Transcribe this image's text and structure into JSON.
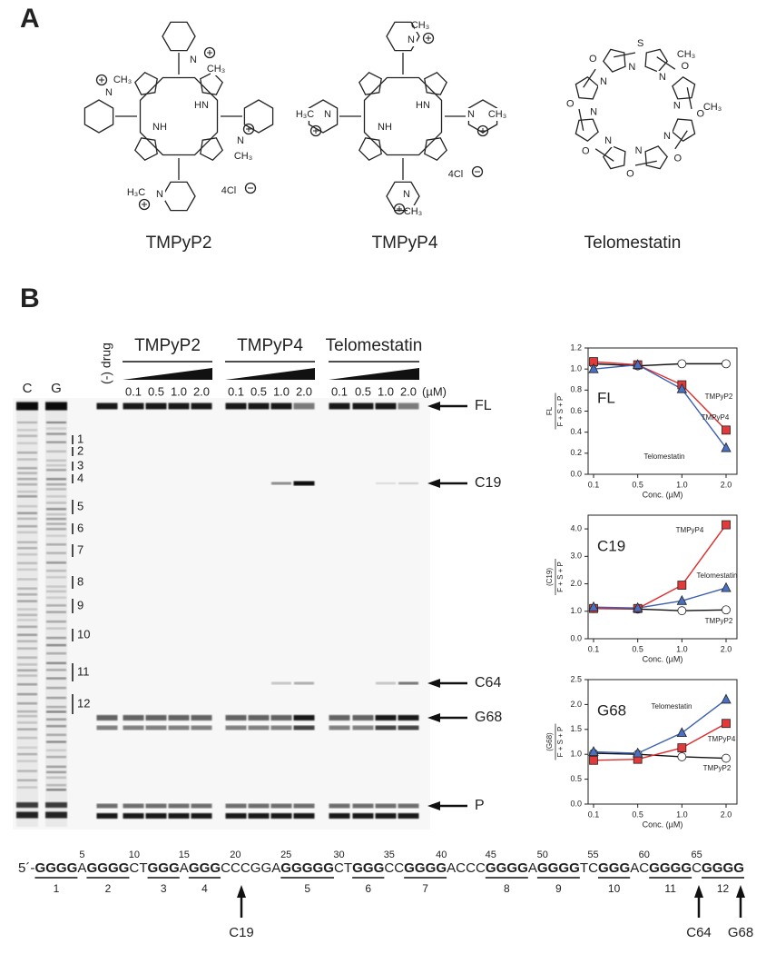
{
  "panel_a": {
    "label": "A",
    "structures": [
      {
        "name": "TMPyP2",
        "atoms": [
          "N",
          "CH₃",
          "N",
          "CH₃",
          "N",
          "CH₃",
          "H₃C",
          "N",
          "NH",
          "HN",
          "4Cl"
        ]
      },
      {
        "name": "TMPyP4",
        "atoms": [
          "CH₃",
          "N",
          "H₃C",
          "N",
          "N",
          "CH₃",
          "NH",
          "HN",
          "N",
          "CH₃",
          "4Cl"
        ]
      },
      {
        "name": "Telomestatin",
        "atoms": [
          "S",
          "N",
          "O",
          "N",
          "O",
          "N",
          "O",
          "N",
          "O",
          "N",
          "O",
          "N",
          "O",
          "N",
          "O",
          "N",
          "CH₃",
          "CH₃"
        ]
      }
    ]
  },
  "panel_b": {
    "label": "B",
    "lane_labels": [
      "C",
      "G"
    ],
    "no_drug": "(-) drug",
    "drugs": [
      "TMPyP2",
      "TMPyP4",
      "Telomestatin"
    ],
    "concentrations": [
      "0.1",
      "0.5",
      "1.0",
      "2.0",
      "0.1",
      "0.5",
      "1.0",
      "2.0",
      "0.1",
      "0.5",
      "1.0",
      "2.0"
    ],
    "unit": "(µM)",
    "run_markers": [
      "1",
      "2",
      "3",
      "4",
      "5",
      "6",
      "7",
      "8",
      "9",
      "10",
      "11",
      "12"
    ],
    "products": [
      "FL",
      "C19",
      "C64",
      "G68",
      "P"
    ]
  },
  "sequence": {
    "segments": [
      {
        "text": "5´-",
        "bold": false
      },
      {
        "text": "GGGG",
        "bold": true
      },
      {
        "text": "A",
        "bold": false
      },
      {
        "text": "GGGG",
        "bold": true
      },
      {
        "text": "CT",
        "bold": false
      },
      {
        "text": "GGG",
        "bold": true
      },
      {
        "text": "A",
        "bold": false
      },
      {
        "text": "GGG",
        "bold": true
      },
      {
        "text": "CCCGGA",
        "bold": false
      },
      {
        "text": "GGGGG",
        "bold": true
      },
      {
        "text": "CT",
        "bold": false
      },
      {
        "text": "GGG",
        "bold": true
      },
      {
        "text": "CC",
        "bold": false
      },
      {
        "text": "GGGG",
        "bold": true
      },
      {
        "text": "ACCC",
        "bold": false
      },
      {
        "text": "GGGG",
        "bold": true
      },
      {
        "text": "A",
        "bold": false
      },
      {
        "text": "GGGG",
        "bold": true
      },
      {
        "text": "TC",
        "bold": false
      },
      {
        "text": "GGG",
        "bold": true
      },
      {
        "text": "AC",
        "bold": false
      },
      {
        "text": "GGGG",
        "bold": true
      },
      {
        "text": "C",
        "bold": false
      },
      {
        "text": "GGGG",
        "bold": true
      }
    ],
    "positions": [
      5,
      10,
      15,
      20,
      25,
      30,
      35,
      40,
      45,
      50,
      55,
      60,
      65
    ],
    "run_labels": [
      "1",
      "2",
      "3",
      "4",
      "5",
      "6",
      "7",
      "8",
      "9",
      "10",
      "11",
      "12"
    ],
    "sites": [
      "C19",
      "C64",
      "G68"
    ]
  },
  "chart_data": [
    {
      "type": "line",
      "label": "FL",
      "ylabel": {
        "numerator": "FL",
        "denominator": "F + S + P"
      },
      "xlabel": "Conc. (µM)",
      "categories": [
        "0.1",
        "0.5",
        "1.0",
        "2.0"
      ],
      "ylim": [
        0,
        1.2
      ],
      "yticks": [
        {
          "value": 0,
          "label": "0.0"
        },
        {
          "value": 0.2,
          "label": "0.2"
        },
        {
          "value": 0.4,
          "label": "0.4"
        },
        {
          "value": 0.6,
          "label": "0.6"
        },
        {
          "value": 0.8,
          "label": "0.8"
        },
        {
          "value": 1,
          "label": "1.0"
        },
        {
          "value": 1.2,
          "label": "1.2"
        }
      ],
      "series": [
        {
          "name": "TMPyP2",
          "color": "#111111",
          "fill": "#ffffff",
          "marker": "circle",
          "values": [
            1.05,
            1.03,
            1.05,
            1.05
          ]
        },
        {
          "name": "TMPyP4",
          "color": "#e02a2a",
          "fill": "#e23a3a",
          "marker": "square",
          "values": [
            1.07,
            1.04,
            0.85,
            0.42
          ]
        },
        {
          "name": "Telomestatin",
          "color": "#3b5eb0",
          "fill": "#4a70c4",
          "marker": "triangle",
          "values": [
            1.0,
            1.04,
            0.81,
            0.25
          ]
        }
      ]
    },
    {
      "type": "line",
      "label": "C19",
      "ylabel": {
        "numerator": "(C19)",
        "denominator": "F + S + P"
      },
      "xlabel": "Conc. (µM)",
      "categories": [
        "0.1",
        "0.5",
        "1.0",
        "2.0"
      ],
      "ylim": [
        0,
        4.5
      ],
      "yticks": [
        {
          "value": 0,
          "label": "0.0"
        },
        {
          "value": 1,
          "label": "1.0"
        },
        {
          "value": 2,
          "label": "2.0"
        },
        {
          "value": 3,
          "label": "3.0"
        },
        {
          "value": 4,
          "label": "4.0"
        }
      ],
      "series": [
        {
          "name": "TMPyP2",
          "color": "#111111",
          "fill": "#ffffff",
          "marker": "circle",
          "values": [
            1.1,
            1.08,
            1.02,
            1.05
          ]
        },
        {
          "name": "TMPyP4",
          "color": "#e02a2a",
          "fill": "#e23a3a",
          "marker": "square",
          "values": [
            1.1,
            1.1,
            1.95,
            4.15
          ]
        },
        {
          "name": "Telomestatin",
          "color": "#3b5eb0",
          "fill": "#4a70c4",
          "marker": "triangle",
          "values": [
            1.15,
            1.12,
            1.38,
            1.85
          ]
        }
      ]
    },
    {
      "type": "line",
      "label": "G68",
      "ylabel": {
        "numerator": "(G68)",
        "denominator": "F + S + P"
      },
      "xlabel": "Conc. (µM)",
      "categories": [
        "0.1",
        "0.5",
        "1.0",
        "2.0"
      ],
      "ylim": [
        0,
        2.5
      ],
      "yticks": [
        {
          "value": 0,
          "label": "0.0"
        },
        {
          "value": 0.5,
          "label": "0.5"
        },
        {
          "value": 1,
          "label": "1.0"
        },
        {
          "value": 1.5,
          "label": "1.5"
        },
        {
          "value": 2,
          "label": "2.0"
        },
        {
          "value": 2.5,
          "label": "2.5"
        }
      ],
      "series": [
        {
          "name": "TMPyP2",
          "color": "#111111",
          "fill": "#ffffff",
          "marker": "circle",
          "values": [
            1.02,
            1.0,
            0.95,
            0.92
          ]
        },
        {
          "name": "TMPyP4",
          "color": "#e02a2a",
          "fill": "#e23a3a",
          "marker": "square",
          "values": [
            0.88,
            0.9,
            1.13,
            1.62
          ]
        },
        {
          "name": "Telomestatin",
          "color": "#3b5eb0",
          "fill": "#4a70c4",
          "marker": "triangle",
          "values": [
            1.05,
            1.02,
            1.43,
            2.1
          ]
        }
      ]
    }
  ]
}
